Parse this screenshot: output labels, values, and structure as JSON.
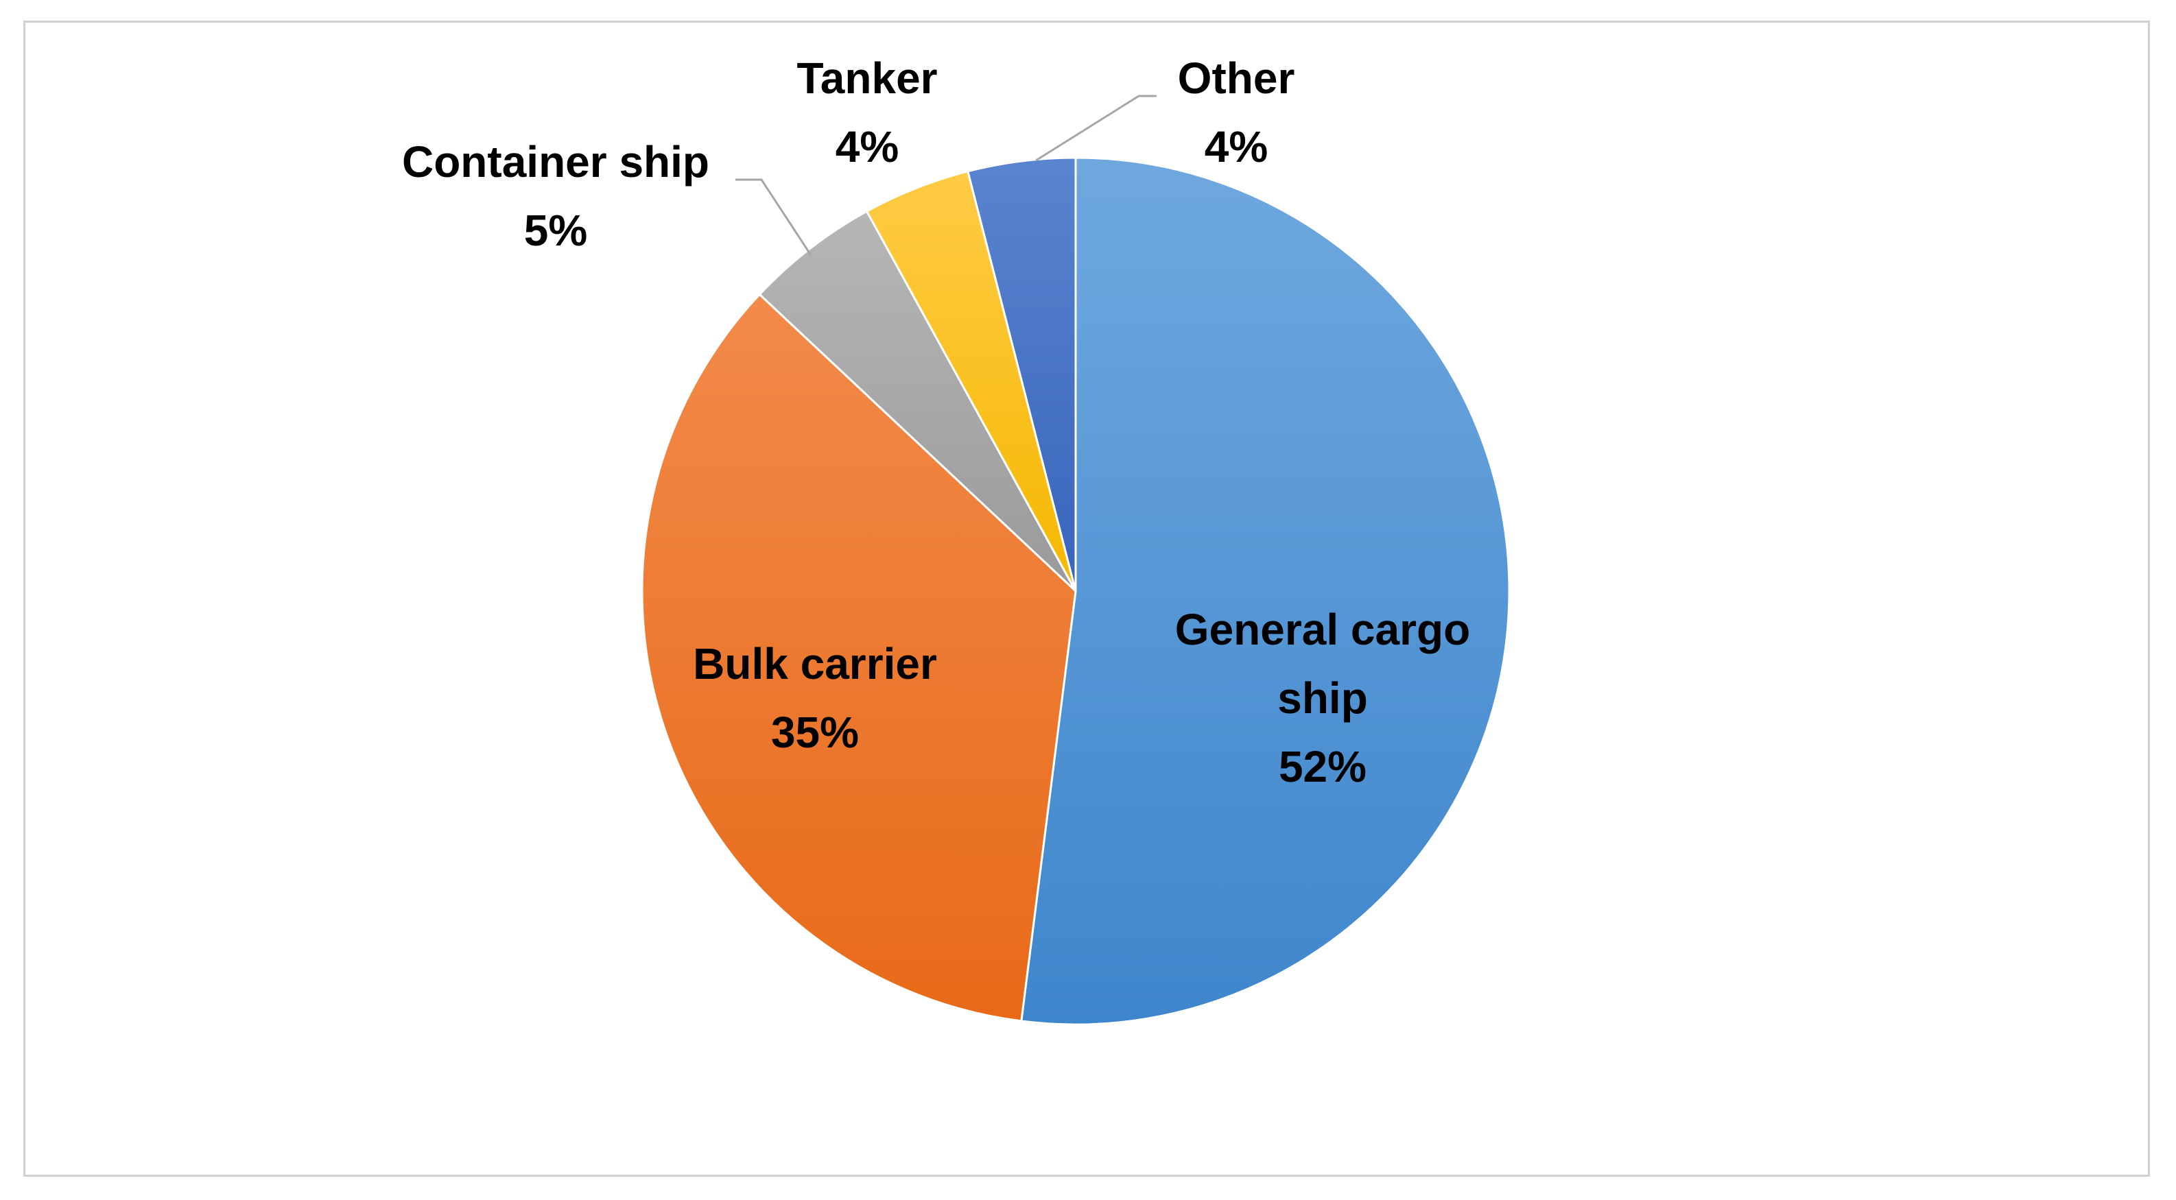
{
  "chart_data": {
    "type": "pie",
    "title": "",
    "start_angle_deg": 0,
    "direction": "clockwise",
    "slices": [
      {
        "label": "General cargo ship",
        "value": 52,
        "value_label": "52%",
        "color": "#4a90d4",
        "color_light": "#6fa8df",
        "color_dark": "#3e86cc",
        "label_lines": [
          "General cargo",
          "ship"
        ]
      },
      {
        "label": "Bulk carrier",
        "value": 35,
        "value_label": "35%",
        "color": "#ee7726",
        "color_light": "#f28a4a",
        "color_dark": "#e86a18",
        "label_lines": [
          "Bulk carrier"
        ]
      },
      {
        "label": "Container ship",
        "value": 5,
        "value_label": "5%",
        "color": "#a5a5a5",
        "color_light": "#b6b6b6",
        "color_dark": "#9a9a9a",
        "label_lines": [
          "Container ship"
        ]
      },
      {
        "label": "Tanker",
        "value": 4,
        "value_label": "4%",
        "color": "#ffc000",
        "color_light": "#ffcb45",
        "color_dark": "#f5b800",
        "label_lines": [
          "Tanker"
        ]
      },
      {
        "label": "Other",
        "value": 4,
        "value_label": "4%",
        "color": "#4472c4",
        "color_light": "#5a84cf",
        "color_dark": "#3865bb",
        "label_lines": [
          "Other"
        ]
      }
    ],
    "legend": "none",
    "labels": "category and percentage on or next to each slice"
  }
}
